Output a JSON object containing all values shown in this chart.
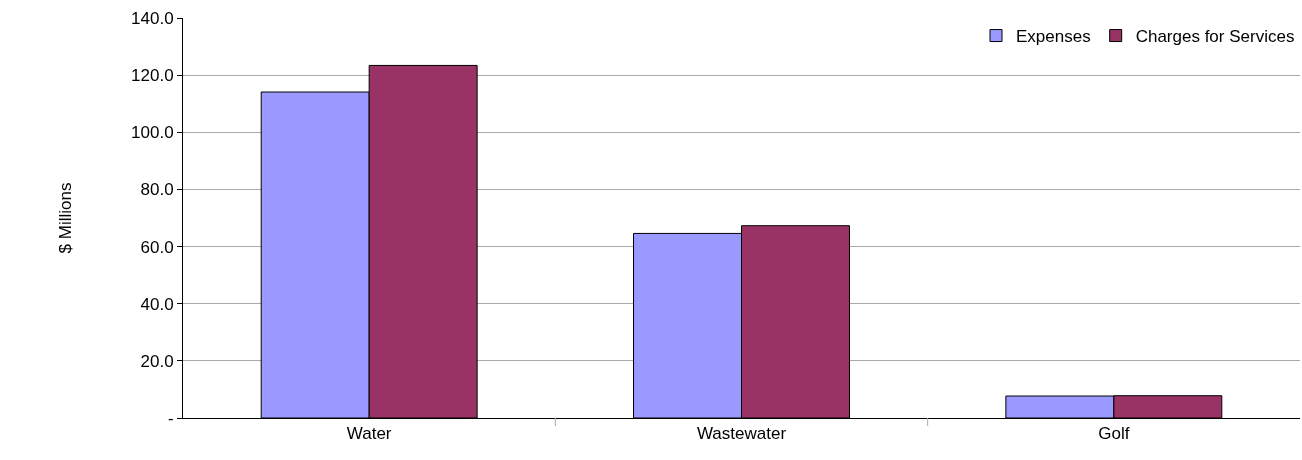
{
  "chart_data": {
    "type": "bar",
    "ylabel": "$ Millions",
    "categories": [
      "Water",
      "Wastewater",
      "Golf"
    ],
    "series": [
      {
        "name": "Expenses",
        "color": "#9999ff",
        "values": [
          114.1,
          64.6,
          7.7
        ]
      },
      {
        "name": "Charges for Services",
        "color": "#993366",
        "values": [
          123.4,
          67.3,
          7.8
        ]
      }
    ],
    "ylim": [
      0,
      140
    ],
    "yticks": [
      {
        "value": 0,
        "label": "-"
      },
      {
        "value": 20,
        "label": "20.0"
      },
      {
        "value": 40,
        "label": "40.0"
      },
      {
        "value": 60,
        "label": "60.0"
      },
      {
        "value": 80,
        "label": "80.0"
      },
      {
        "value": 100,
        "label": "100.0"
      },
      {
        "value": 120,
        "label": "120.0"
      },
      {
        "value": 140,
        "label": "140.0"
      }
    ],
    "grid": "y",
    "legend": "top right"
  }
}
